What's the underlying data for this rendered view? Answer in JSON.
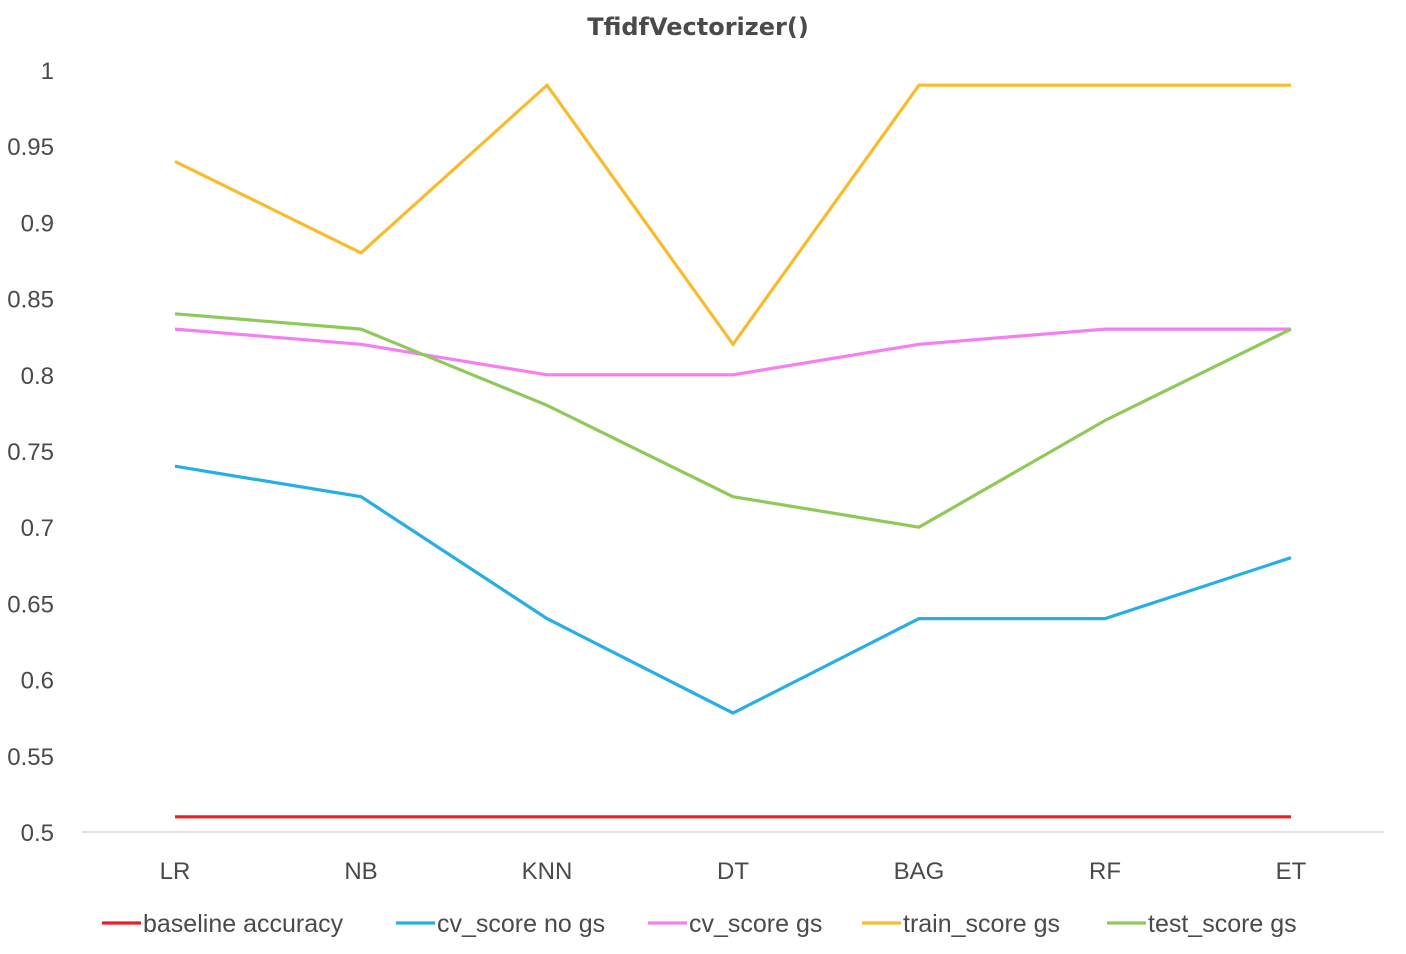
{
  "chart_data": {
    "type": "line",
    "title": "TfidfVectorizer()",
    "xlabel": "",
    "ylabel": "",
    "categories": [
      "LR",
      "NB",
      "KNN",
      "DT",
      "BAG",
      "RF",
      "ET"
    ],
    "ylim": [
      0.5,
      1
    ],
    "yticks": [
      "0.5",
      "0.55",
      "0.6",
      "0.65",
      "0.7",
      "0.75",
      "0.8",
      "0.85",
      "0.9",
      "0.95",
      "1"
    ],
    "grid": false,
    "legend_position": "bottom",
    "series": [
      {
        "name": "baseline accuracy",
        "color": "#ee1c25",
        "values": [
          0.51,
          0.51,
          0.51,
          0.51,
          0.51,
          0.51,
          0.51
        ]
      },
      {
        "name": "cv_score no gs",
        "color": "#27aee6",
        "values": [
          0.74,
          0.72,
          0.64,
          0.578,
          0.64,
          0.64,
          0.68
        ]
      },
      {
        "name": "cv_score gs",
        "color": "#f57ef3",
        "values": [
          0.83,
          0.82,
          0.8,
          0.8,
          0.82,
          0.83,
          0.83
        ]
      },
      {
        "name": "train_score gs",
        "color": "#f9bb2d",
        "values": [
          0.94,
          0.88,
          0.99,
          0.82,
          0.99,
          0.99,
          0.99
        ]
      },
      {
        "name": "test_score gs",
        "color": "#8fc95a",
        "values": [
          0.84,
          0.83,
          0.78,
          0.72,
          0.7,
          0.77,
          0.83
        ]
      }
    ]
  }
}
